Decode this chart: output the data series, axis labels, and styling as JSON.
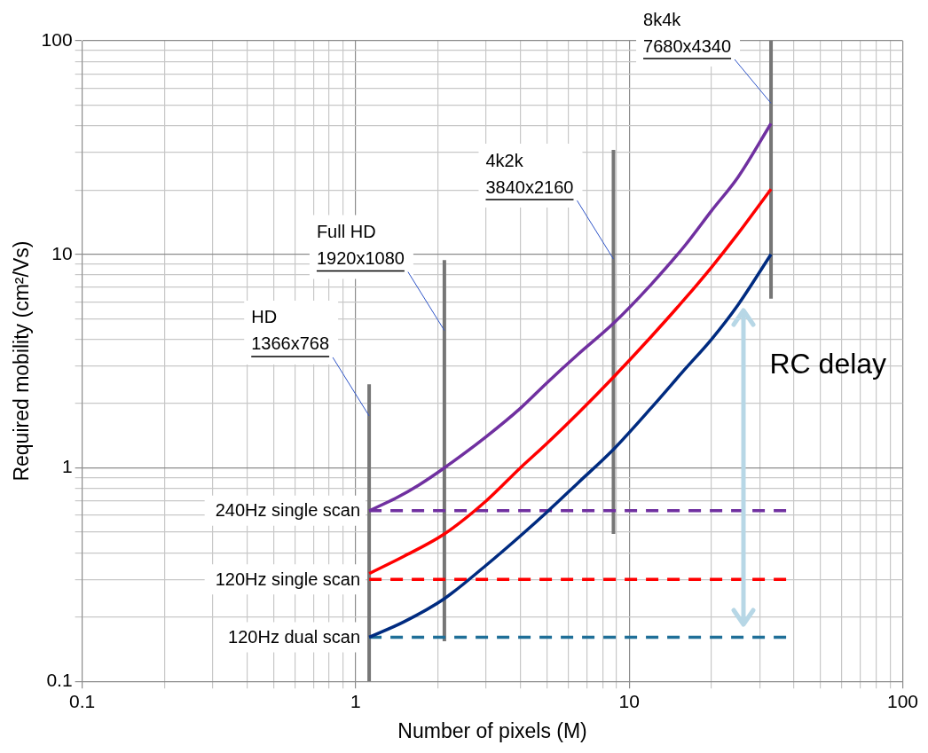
{
  "chart_data": {
    "type": "line",
    "xlabel": "Number of pixels (M)",
    "ylabel": "Required mobility (cm²/Vs)",
    "log": "xy",
    "grid": true,
    "legend": false,
    "marker": "none",
    "xlim": [
      0.1,
      100
    ],
    "ylim": [
      0.1,
      100
    ],
    "xticks": [
      0.1,
      {
        "value": 0.2,
        "label": null
      },
      {
        "value": 0.3,
        "label": null
      },
      {
        "value": 0.4,
        "label": null
      },
      {
        "value": 0.5,
        "label": null
      },
      {
        "value": 0.6,
        "label": null
      },
      {
        "value": 0.7,
        "label": null
      },
      {
        "value": 0.8,
        "label": null
      },
      {
        "value": 0.9,
        "label": null
      },
      1,
      {
        "value": 2,
        "label": null
      },
      {
        "value": 3,
        "label": null
      },
      {
        "value": 4,
        "label": null
      },
      {
        "value": 5,
        "label": null
      },
      {
        "value": 6,
        "label": null
      },
      {
        "value": 7,
        "label": null
      },
      {
        "value": 8,
        "label": null
      },
      {
        "value": 9,
        "label": null
      },
      10,
      {
        "value": 20,
        "label": null
      },
      {
        "value": 30,
        "label": null
      },
      {
        "value": 40,
        "label": null
      },
      {
        "value": 50,
        "label": null
      },
      {
        "value": 60,
        "label": null
      },
      {
        "value": 70,
        "label": null
      },
      {
        "value": 80,
        "label": null
      },
      {
        "value": 90,
        "label": null
      },
      100
    ],
    "yticks": [
      0.1,
      {
        "value": 0.2,
        "label": null
      },
      {
        "value": 0.3,
        "label": null
      },
      {
        "value": 0.4,
        "label": null
      },
      {
        "value": 0.5,
        "label": null
      },
      {
        "value": 0.6,
        "label": null
      },
      {
        "value": 0.7,
        "label": null
      },
      {
        "value": 0.8,
        "label": null
      },
      {
        "value": 0.9,
        "label": null
      },
      1,
      {
        "value": 2,
        "label": null
      },
      {
        "value": 3,
        "label": null
      },
      {
        "value": 4,
        "label": null
      },
      {
        "value": 5,
        "label": null
      },
      {
        "value": 6,
        "label": null
      },
      {
        "value": 7,
        "label": null
      },
      {
        "value": 8,
        "label": null
      },
      {
        "value": 9,
        "label": null
      },
      10,
      {
        "value": 20,
        "label": null
      },
      {
        "value": 30,
        "label": null
      },
      {
        "value": 40,
        "label": null
      },
      {
        "value": 50,
        "label": null
      },
      {
        "value": 60,
        "label": null
      },
      {
        "value": 70,
        "label": null
      },
      {
        "value": 80,
        "label": null
      },
      {
        "value": 90,
        "label": null
      },
      100
    ],
    "series": [
      {
        "color": "#7030a0",
        "x": [
          1.12,
          1.4,
          1.7,
          2.11,
          3,
          4,
          5,
          6.5,
          8.76,
          12,
          16,
          20,
          25,
          33
        ],
        "values": [
          0.63,
          0.72,
          0.83,
          1.0,
          1.4,
          1.9,
          2.5,
          3.4,
          4.75,
          7.2,
          11,
          16,
          23,
          41
        ]
      },
      {
        "color": "#ff0000",
        "x": [
          1.12,
          1.5,
          2.11,
          3,
          4,
          5,
          6.5,
          8.76,
          12,
          16,
          20,
          25,
          33
        ],
        "values": [
          0.32,
          0.385,
          0.49,
          0.7,
          1.0,
          1.3,
          1.8,
          2.66,
          4.1,
          6.2,
          8.7,
          12.5,
          20.2
        ]
      },
      {
        "color": "#002b80",
        "x": [
          1.12,
          1.5,
          2.11,
          3,
          4,
          5,
          6.5,
          8.76,
          12,
          16,
          20,
          25,
          33
        ],
        "values": [
          0.161,
          0.19,
          0.244,
          0.35,
          0.48,
          0.62,
          0.85,
          1.22,
          1.9,
          2.9,
          4.0,
          5.8,
          10.0
        ]
      },
      {
        "name": "240Hz single scan",
        "color": "#7030a0",
        "line_style": "dashed",
        "x": [
          1.12,
          37.6
        ],
        "values": [
          0.63,
          0.63
        ]
      },
      {
        "name": "120Hz single scan",
        "color": "#ff0000",
        "line_style": "dashed",
        "x": [
          1.12,
          37.6
        ],
        "values": [
          0.3,
          0.3
        ]
      },
      {
        "name": "120Hz dual scan",
        "color": "#1f6f98",
        "line_style": "dashed",
        "x": [
          1.12,
          37.6
        ],
        "values": [
          0.161,
          0.161
        ]
      },
      {
        "color": "#767676",
        "x": [
          1.12,
          1.12
        ],
        "values": [
          0.1,
          2.46
        ]
      },
      {
        "color": "#767676",
        "x": [
          2.11,
          2.11
        ],
        "values": [
          0.154,
          9.4
        ]
      },
      {
        "color": "#767676",
        "x": [
          8.76,
          8.76
        ],
        "values": [
          0.49,
          30.8
        ]
      },
      {
        "color": "#767676",
        "x": [
          33,
          33
        ],
        "values": [
          6.2,
          100
        ]
      }
    ],
    "annotations": [
      {
        "text": "HD\n1366x768",
        "x": 1.12,
        "y": 1.75
      },
      {
        "text": "Full HD\n1920x1080",
        "x": 2.11,
        "y": 4.4
      },
      {
        "text": "4k2k\n3840x2160",
        "x": 8.76,
        "y": 9.5
      },
      {
        "text": "8k4k\n7680x4340",
        "x": 33,
        "y": 51
      },
      "RC delay"
    ]
  }
}
